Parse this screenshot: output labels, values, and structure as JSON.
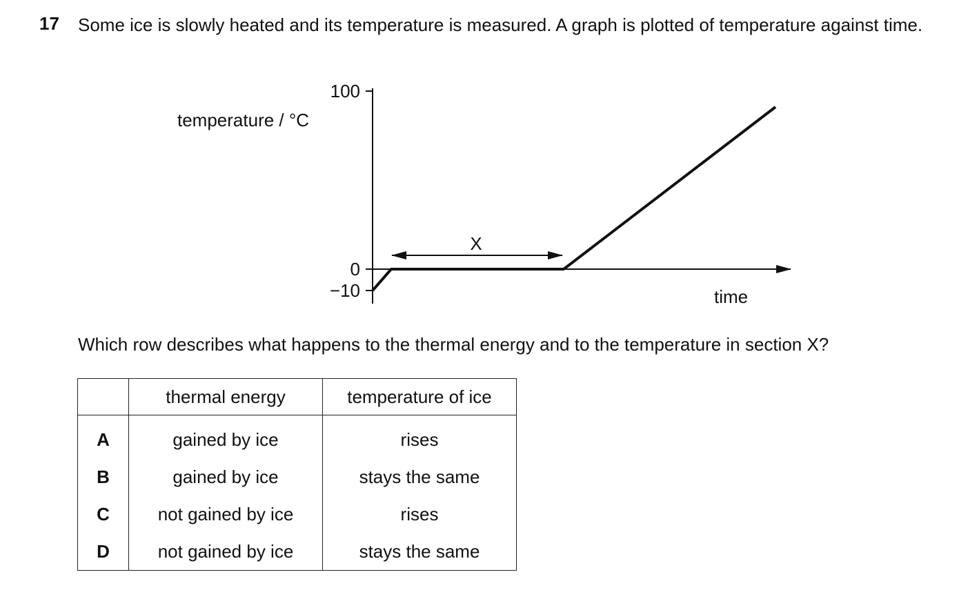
{
  "question": {
    "number": "17",
    "text": "Some ice is slowly heated and its temperature is measured. A graph is plotted of temperature against time."
  },
  "figure": {
    "y_axis_label": "temperature / °C",
    "x_axis_label": "time",
    "y_ticks": [
      "100",
      "0",
      "−10"
    ],
    "section_label": "X"
  },
  "prompt": "Which row describes what happens to the thermal energy and to the temperature in section X?",
  "table": {
    "header": [
      "thermal energy",
      "temperature of ice"
    ],
    "rows": [
      [
        "A",
        "gained by ice",
        "rises"
      ],
      [
        "B",
        "gained by ice",
        "stays the same"
      ],
      [
        "C",
        "not gained by ice",
        "rises"
      ],
      [
        "D",
        "not gained by ice",
        "stays the same"
      ]
    ]
  }
}
